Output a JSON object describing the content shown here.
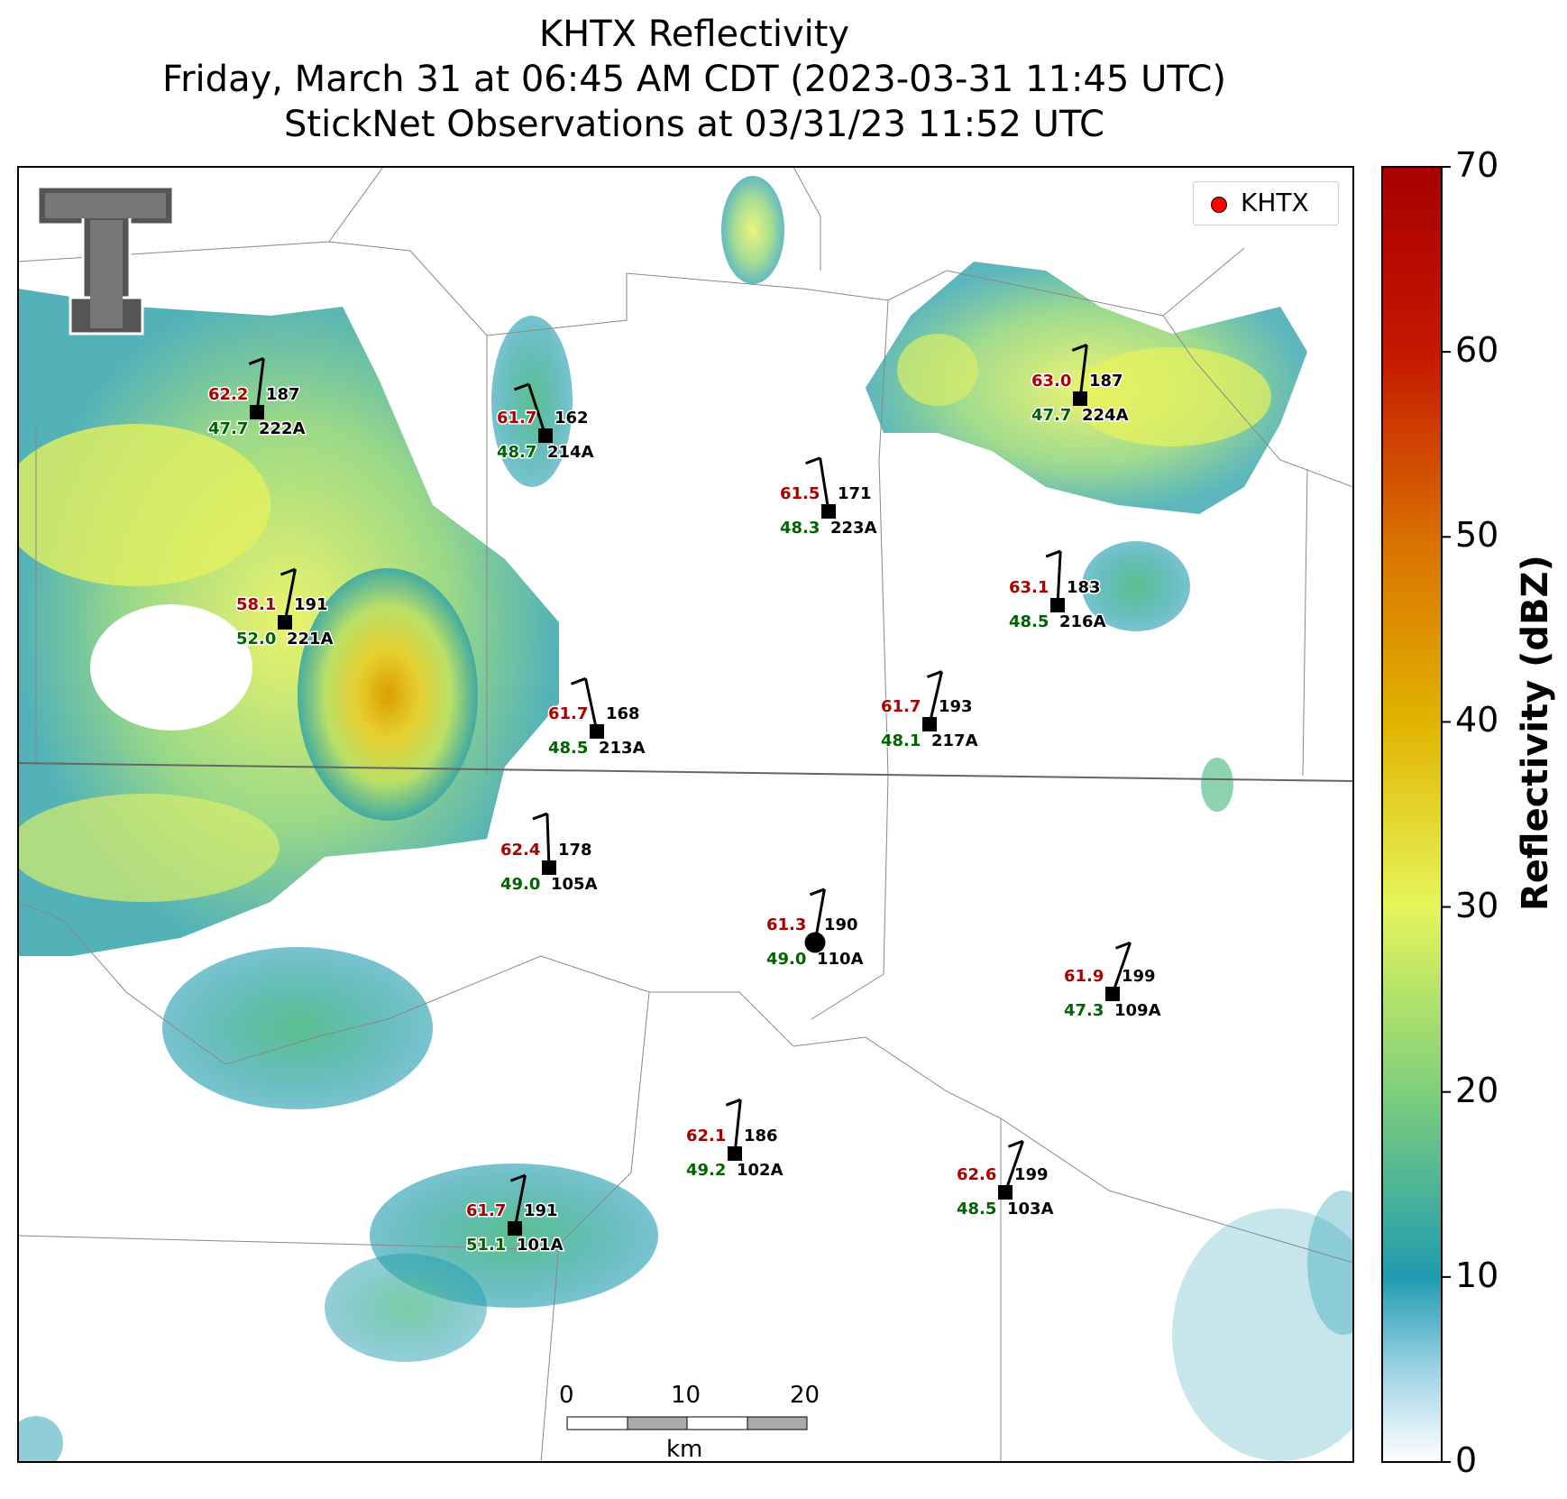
{
  "header": {
    "title_line1": "KHTX Reflectivity",
    "title_line2": "Friday, March 31 at 06:45 AM CDT (2023-03-31 11:45 UTC)",
    "title_line3": "StickNet Observations at 03/31/23 11:52 UTC"
  },
  "legend": {
    "label": "KHTX",
    "marker_color": "#ff0000"
  },
  "colorbar": {
    "title": "Reflectivity (dBZ)",
    "ticks": [
      "0",
      "10",
      "20",
      "30",
      "40",
      "50",
      "60",
      "70"
    ],
    "min": 0,
    "max": 70,
    "colors": [
      "#ffffff",
      "#1f9bb0",
      "#7ecf7b",
      "#e6f55a",
      "#e0b400",
      "#d96f00",
      "#c41800",
      "#a80000"
    ]
  },
  "scalebar": {
    "ticks": [
      "0",
      "10",
      "20"
    ],
    "unit": "km"
  },
  "stations": [
    {
      "id": "222A",
      "temp": "62.2",
      "dew": "47.7",
      "dir": "187"
    },
    {
      "id": "214A",
      "temp": "61.7",
      "dew": "48.7",
      "dir": "162"
    },
    {
      "id": "223A",
      "temp": "61.5",
      "dew": "48.3",
      "dir": "171"
    },
    {
      "id": "224A",
      "temp": "63.0",
      "dew": "47.7",
      "dir": "187"
    },
    {
      "id": "216A",
      "temp": "63.1",
      "dew": "48.5",
      "dir": "183"
    },
    {
      "id": "221A",
      "temp": "58.1",
      "dew": "52.0",
      "dir": "191"
    },
    {
      "id": "213A",
      "temp": "61.7",
      "dew": "48.5",
      "dir": "168"
    },
    {
      "id": "217A",
      "temp": "61.7",
      "dew": "48.1",
      "dir": "193"
    },
    {
      "id": "105A",
      "temp": "62.4",
      "dew": "49.0",
      "dir": "178"
    },
    {
      "id": "110A",
      "temp": "61.3",
      "dew": "49.0",
      "dir": "190"
    },
    {
      "id": "109A",
      "temp": "61.9",
      "dew": "47.3",
      "dir": "199"
    },
    {
      "id": "102A",
      "temp": "62.1",
      "dew": "49.2",
      "dir": "186"
    },
    {
      "id": "103A",
      "temp": "62.6",
      "dew": "48.5",
      "dir": "199"
    },
    {
      "id": "101A",
      "temp": "61.7",
      "dew": "51.1",
      "dir": "191"
    }
  ],
  "colors": {
    "temp": "#aa0000",
    "dew": "#006400",
    "frame": "#000000"
  }
}
